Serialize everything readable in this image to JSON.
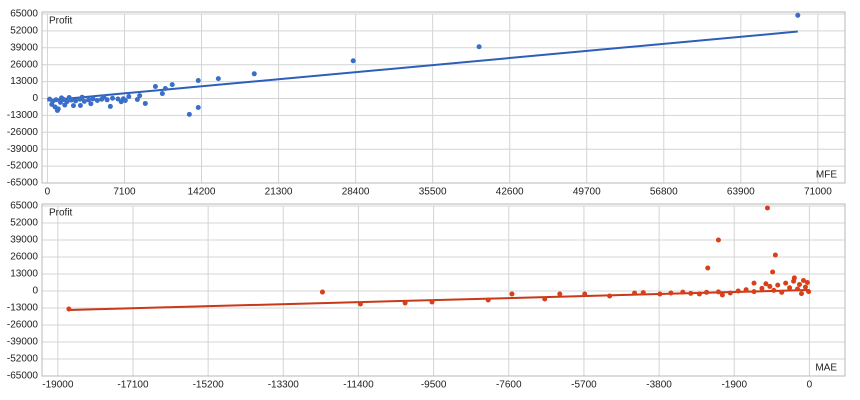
{
  "chart_data": [
    {
      "type": "scatter",
      "y_label": "Profit",
      "x_label": "MFE",
      "color": "#3a6fc9",
      "line_color": "#2e5fb8",
      "x": [
        69150,
        39780,
        28180,
        19060,
        15750,
        13900,
        13900,
        13080,
        11500,
        10870,
        10590,
        9950,
        9020,
        8290,
        7180,
        5800,
        3040,
        920,
        200,
        500,
        800,
        1200,
        1500,
        1800,
        2200,
        2600,
        3000,
        3400,
        3800,
        4200,
        4600,
        5000,
        5500,
        6000,
        6500,
        7000,
        400,
        700,
        1000,
        1600,
        2400,
        4000,
        6800,
        1300,
        2000,
        3200,
        5200,
        7500,
        8500
      ],
      "values": [
        64000,
        39800,
        29000,
        19000,
        15300,
        13800,
        -6900,
        -12200,
        10700,
        7700,
        3800,
        9200,
        -3800,
        -800,
        -1500,
        -6100,
        -5400,
        -9200,
        -500,
        -2000,
        -1000,
        -3000,
        -800,
        -2500,
        -1200,
        -1800,
        -600,
        -2200,
        -1000,
        -300,
        -1500,
        -600,
        -1000,
        200,
        -400,
        -200,
        -4500,
        -6500,
        -8000,
        -5000,
        -5500,
        -4000,
        -2500,
        500,
        800,
        1000,
        1200,
        1500,
        2200
      ],
      "trendline": {
        "x": [
          0,
          69150
        ],
        "values": [
          -1500,
          51500
        ]
      },
      "xlim": [
        -500,
        73500
      ],
      "ylim": [
        -65000,
        65000
      ],
      "xticks": [
        0,
        7100,
        14200,
        21300,
        28400,
        35500,
        42600,
        49700,
        56800,
        63900,
        71000
      ],
      "yticks": [
        -65000,
        -52000,
        -39000,
        -26000,
        -13000,
        0,
        13000,
        26000,
        39000,
        52000,
        65000
      ],
      "grid": true
    },
    {
      "type": "scatter",
      "y_label": "Profit",
      "x_label": "MAE",
      "color": "#d9401a",
      "line_color": "#c8381a",
      "x": [
        -18720,
        -12310,
        -11350,
        -10220,
        -9540,
        -8120,
        -7520,
        -6690,
        -6310,
        -5680,
        -5050,
        -4420,
        -3780,
        -2780,
        -2570,
        -2300,
        -1060,
        -860,
        -930,
        -380,
        -3500,
        -3200,
        -3000,
        -2600,
        -2300,
        -2000,
        -1800,
        -1600,
        -1400,
        -1200,
        -1000,
        -900,
        -800,
        -700,
        -600,
        -500,
        -400,
        -300,
        -250,
        -200,
        -150,
        -100,
        -50,
        -20,
        -1400,
        -1100,
        -2200,
        -4200
      ],
      "values": [
        -13800,
        -800,
        -9900,
        -9200,
        -8400,
        -6900,
        -2300,
        -6100,
        -2300,
        -2300,
        -3800,
        -1500,
        -2300,
        -2300,
        17600,
        39000,
        63500,
        27500,
        14500,
        10000,
        -1500,
        -900,
        -1800,
        -1000,
        -700,
        -1500,
        0,
        1000,
        -500,
        2000,
        3500,
        500,
        4500,
        -1000,
        6000,
        2500,
        7500,
        1500,
        5000,
        -2000,
        8000,
        3000,
        6500,
        -500,
        6000,
        5500,
        -3000,
        -1200
      ],
      "trendline": {
        "x": [
          -18720,
          0
        ],
        "values": [
          -14500,
          800
        ]
      },
      "xlim": [
        -19400,
        900
      ],
      "ylim": [
        -65000,
        65000
      ],
      "xticks": [
        -19000,
        -17100,
        -15200,
        -13300,
        -11400,
        -9500,
        -7600,
        -5700,
        -3800,
        -1900,
        0
      ],
      "yticks": [
        -65000,
        -52000,
        -39000,
        -26000,
        -13000,
        0,
        13000,
        26000,
        39000,
        52000,
        65000
      ],
      "grid": true
    }
  ]
}
